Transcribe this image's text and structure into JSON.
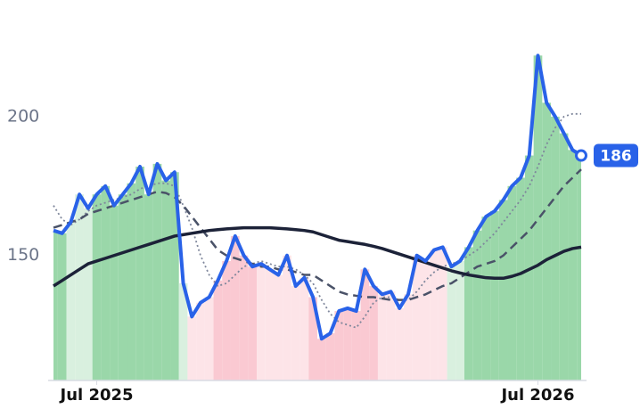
{
  "chart_data": {
    "type": "stock",
    "categories": [
      null,
      null,
      null,
      null,
      null,
      "Jul 2025",
      null,
      null,
      null,
      null,
      null,
      null,
      null,
      null,
      null,
      null,
      null,
      null,
      null,
      null,
      null,
      null,
      null,
      null,
      null,
      null,
      null,
      null,
      null,
      null,
      null,
      null,
      null,
      null,
      null,
      null,
      null,
      null,
      null,
      null,
      null,
      null,
      null,
      null,
      null,
      null,
      null,
      null,
      null,
      null,
      null,
      null,
      null,
      null,
      null,
      null,
      "Jul 2026",
      null,
      null,
      null,
      null,
      null
    ],
    "series": [
      {
        "color": "#2962e8",
        "style": "solid",
        "width": 4,
        "values": [
          159,
          158,
          162,
          172,
          167,
          172,
          175,
          168,
          172,
          176,
          182,
          172,
          183,
          177,
          180,
          140,
          128,
          133,
          135,
          141,
          148,
          157,
          150,
          146,
          147,
          145,
          143,
          150,
          139,
          142,
          135,
          120,
          122,
          130,
          131,
          130,
          145,
          139,
          136,
          137,
          131,
          136,
          150,
          148,
          152,
          153,
          146,
          148,
          153,
          159,
          164,
          166,
          170,
          175,
          178,
          186,
          222,
          205,
          200,
          194,
          188,
          186
        ]
      },
      {
        "color": "#1c2238",
        "style": "solid",
        "width": 3.5,
        "values": [
          139,
          141,
          143,
          145,
          147,
          148,
          149,
          150,
          151,
          152,
          153,
          154,
          155,
          156,
          157,
          157.5,
          158,
          158.5,
          159,
          159.3,
          159.6,
          159.8,
          160,
          160,
          160,
          160,
          159.8,
          159.6,
          159.3,
          159,
          158.5,
          157.5,
          156.5,
          155.5,
          155,
          154.5,
          154,
          153.3,
          152.5,
          151.5,
          150.5,
          149.5,
          148.5,
          147.5,
          146.5,
          145.5,
          144.5,
          143.7,
          143,
          142.5,
          142,
          141.8,
          141.8,
          142.5,
          143.5,
          145,
          146.5,
          148.5,
          150,
          151.5,
          152.5,
          153
        ]
      },
      {
        "color": "#4a5268",
        "style": "dashed",
        "width": 2.5,
        "values": [
          160,
          161,
          162,
          163,
          165,
          166,
          167,
          168,
          169,
          170,
          171,
          172,
          173,
          172.5,
          171,
          168,
          164,
          160,
          156,
          152,
          150,
          149,
          148,
          147,
          146,
          146,
          145,
          145,
          144,
          143,
          143,
          141,
          139,
          137,
          136,
          135.5,
          135,
          135,
          134.5,
          134,
          134,
          134,
          135,
          136,
          137.5,
          139,
          140,
          142,
          144,
          146,
          147,
          148,
          150,
          153,
          156,
          159,
          163,
          167,
          171,
          175,
          178,
          181
        ]
      },
      {
        "color": "#7f879c",
        "style": "dotted",
        "width": 1.8,
        "values": [
          168,
          163,
          161,
          163,
          166,
          168,
          169,
          170,
          171,
          172,
          174,
          175,
          176,
          176,
          175,
          168,
          160,
          150,
          143,
          139,
          140,
          143,
          146,
          147,
          148,
          147,
          146,
          146,
          145,
          143,
          140,
          134,
          129,
          126,
          125,
          124,
          128,
          133,
          135,
          135,
          134,
          134,
          137,
          141,
          144,
          146,
          147,
          148,
          150,
          152,
          155,
          158,
          162,
          166,
          170,
          175,
          182,
          190,
          196,
          200,
          201,
          201
        ]
      }
    ],
    "fill_colors": [
      "#8fd3a0",
      "#8fd3a0",
      "#d5eedc",
      "#d5eedc",
      "#d5eedc",
      "#8fd3a0",
      "#8fd3a0",
      "#8fd3a0",
      "#8fd3a0",
      "#8fd3a0",
      "#8fd3a0",
      "#8fd3a0",
      "#8fd3a0",
      "#8fd3a0",
      "#8fd3a0",
      "#d5eedc",
      "#fde1e6",
      "#fde1e6",
      "#fde1e6",
      "#f9c3cd",
      "#f9c3cd",
      "#f9c3cd",
      "#f9c3cd",
      "#f9c3cd",
      "#fde1e6",
      "#fde1e6",
      "#fde1e6",
      "#fde1e6",
      "#fde1e6",
      "#fde1e6",
      "#f9c3cd",
      "#f9c3cd",
      "#f9c3cd",
      "#f9c3cd",
      "#f9c3cd",
      "#f9c3cd",
      "#f9c3cd",
      "#f9c3cd",
      "#fde1e6",
      "#fde1e6",
      "#fde1e6",
      "#fde1e6",
      "#fde1e6",
      "#fde1e6",
      "#fde1e6",
      "#fde1e6",
      "#d5eedc",
      "#d5eedc",
      "#8fd3a0",
      "#8fd3a0",
      "#8fd3a0",
      "#8fd3a0",
      "#8fd3a0",
      "#8fd3a0",
      "#8fd3a0",
      "#8fd3a0",
      "#8fd3a0",
      "#8fd3a0",
      "#8fd3a0",
      "#8fd3a0",
      "#8fd3a0",
      "#8fd3a0"
    ],
    "ylim": [
      105,
      242
    ],
    "yticks": [
      150,
      200
    ],
    "grid": false,
    "badge_color": "#2962e8"
  }
}
